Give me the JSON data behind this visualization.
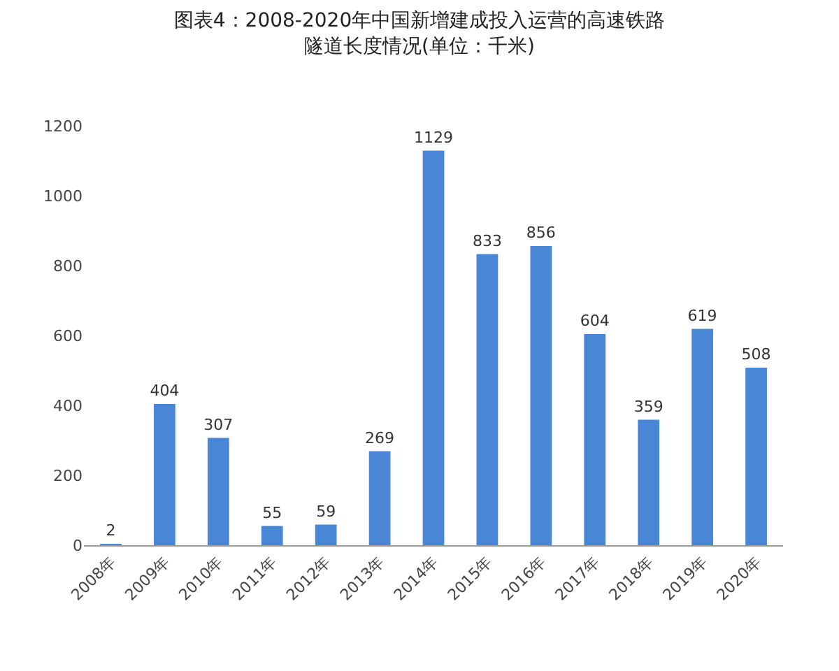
{
  "chart_data": {
    "type": "bar",
    "title": "图表4：2008-2020年中国新增建成投入运营的高速铁路隧道长度情况(单位：千米)",
    "categories": [
      "2008年",
      "2009年",
      "2010年",
      "2011年",
      "2012年",
      "2013年",
      "2014年",
      "2015年",
      "2016年",
      "2017年",
      "2018年",
      "2019年",
      "2020年"
    ],
    "values": [
      2,
      404,
      307,
      55,
      59,
      269,
      1129,
      833,
      856,
      604,
      359,
      619,
      508
    ],
    "color": "#4a86d6",
    "ylim": [
      0,
      1200
    ],
    "yticks": [
      0,
      200,
      400,
      600,
      800,
      1000,
      1200
    ],
    "data_labels": true,
    "grid": false
  }
}
